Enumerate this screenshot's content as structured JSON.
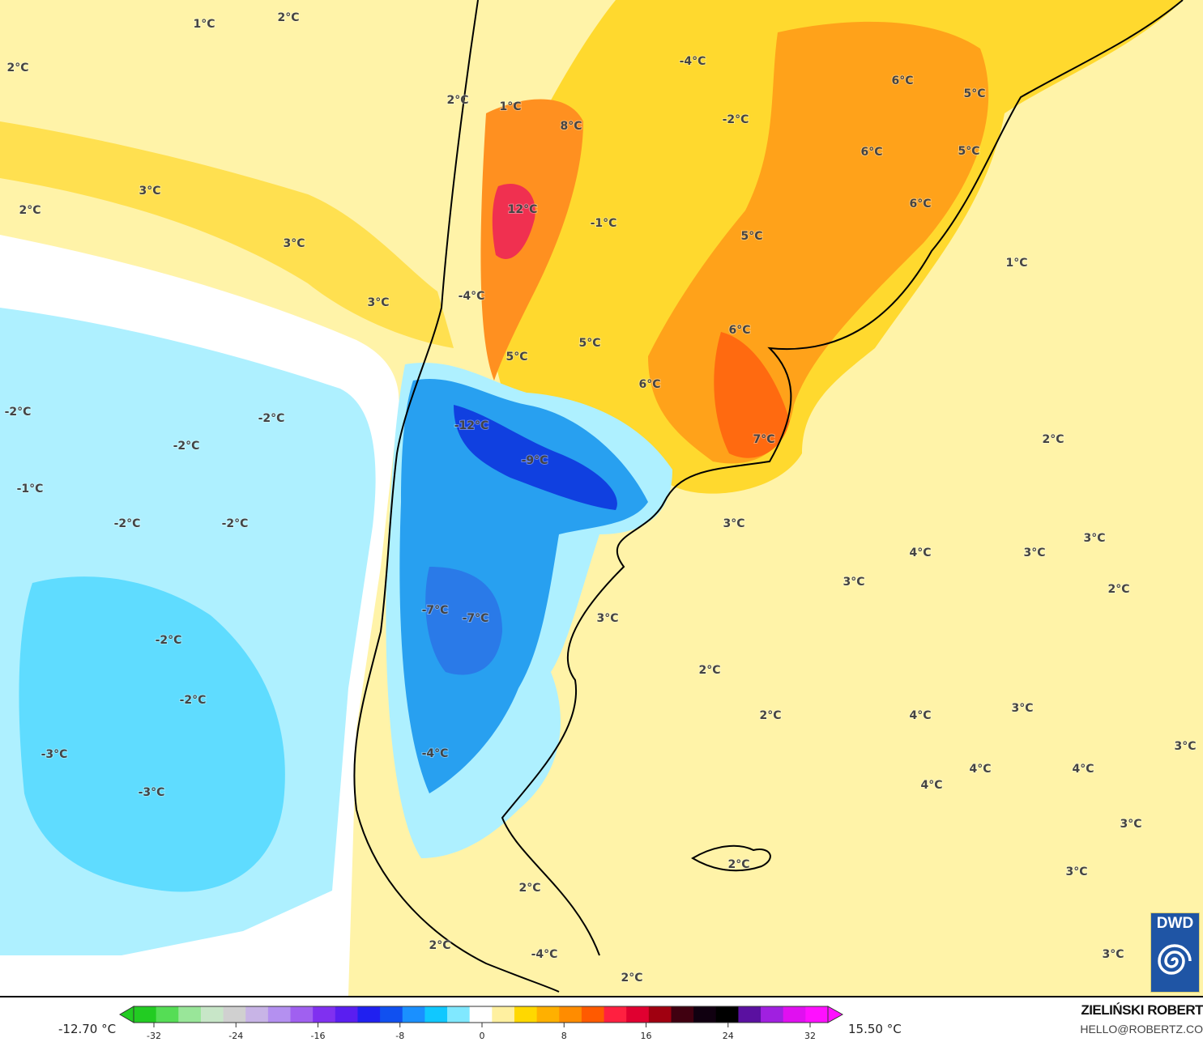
{
  "map": {
    "labels": [
      "1°C",
      "2°C",
      "2°C",
      "2°C",
      "1°C",
      "8°C",
      "-4°C",
      "-2°C",
      "6°C",
      "5°C",
      "6°C",
      "5°C",
      "3°C",
      "2°C",
      "12°C",
      "-1°C",
      "3°C",
      "5°C",
      "6°C",
      "1°C",
      "-4°C",
      "3°C",
      "6°C",
      "5°C",
      "5°C",
      "6°C",
      "-2°C",
      "-2°C",
      "-12°C",
      "-2°C",
      "-9°C",
      "7°C",
      "2°C",
      "-1°C",
      "-2°C",
      "-2°C",
      "3°C",
      "3°C",
      "4°C",
      "3°C",
      "3°C",
      "2°C",
      "-7°C",
      "-7°C",
      "3°C",
      "-2°C",
      "2°C",
      "-2°C",
      "2°C",
      "4°C",
      "3°C",
      "-3°C",
      "3°C",
      "-4°C",
      "-3°C",
      "4°C",
      "4°C",
      "4°C",
      "3°C",
      "2°C",
      "3°C",
      "2°C",
      "2°C",
      "-4°C",
      "3°C",
      "2°C"
    ],
    "colors": {
      "warm_ocean": "#fff3a8",
      "warm": "#ffd92e",
      "orange": "#ffa21a",
      "deep_orange": "#ff6a10",
      "red": "#f03050",
      "cold_ocean": "#aef0ff",
      "cyan": "#5fdcff",
      "blue": "#28a0f0",
      "deep_blue": "#1040e0"
    }
  },
  "legend": {
    "min_label": "-12.70 °C",
    "max_label": "15.50 °C",
    "ticks": [
      "-32",
      "-24",
      "-16",
      "-8",
      "0",
      "8",
      "16",
      "24",
      "32"
    ],
    "colors": [
      "#22cc22",
      "#55dd55",
      "#99e699",
      "#c8e6c8",
      "#d0d0d0",
      "#c8b4e6",
      "#b490f0",
      "#a060f0",
      "#8030f0",
      "#5a1ef0",
      "#2020f0",
      "#1050f0",
      "#1a90ff",
      "#10c8ff",
      "#80e8ff",
      "#ffffff",
      "#fff0a0",
      "#ffd800",
      "#ffb000",
      "#ff8c00",
      "#ff5a00",
      "#ff2040",
      "#e00030",
      "#a00010",
      "#400010",
      "#100010",
      "#000000",
      "#5a10a0",
      "#a020e0",
      "#e010f0",
      "#ff10ff"
    ]
  },
  "branding": {
    "author": "ZIELIŃSKI ROBERT",
    "email": "HELLO@ROBERTZ.CO",
    "logo": "DWD"
  }
}
